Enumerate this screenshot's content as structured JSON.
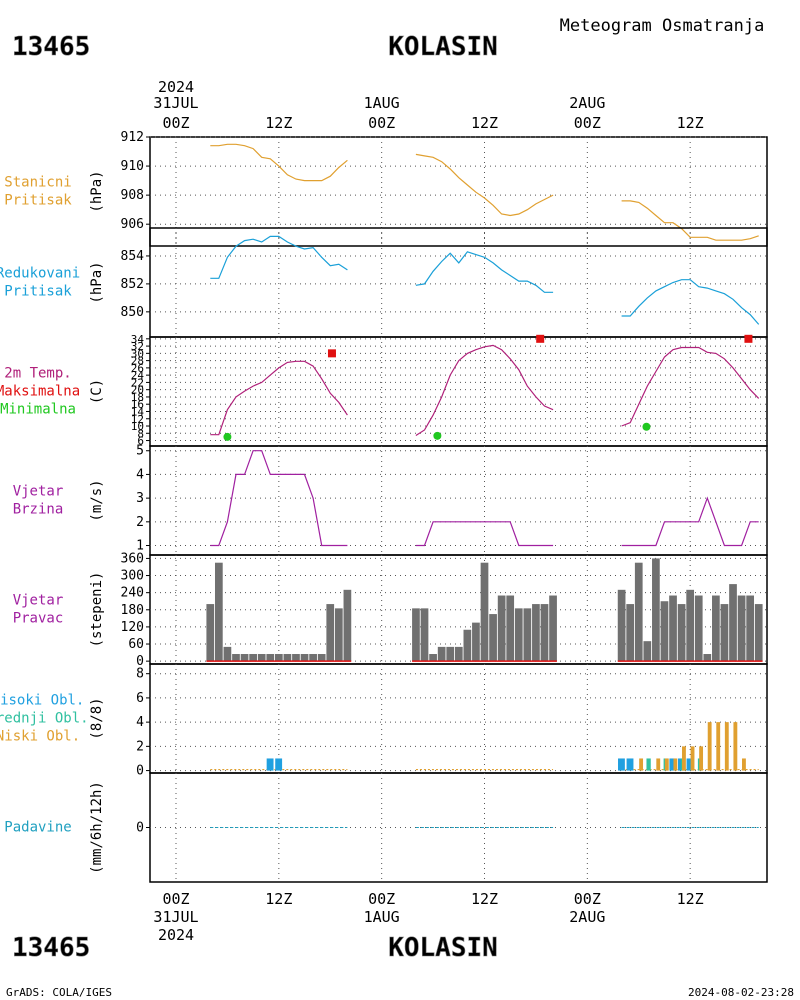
{
  "header": {
    "station_id": "13465",
    "station_name": "KOLASIN",
    "title": "Meteogram Osmatranja"
  },
  "footer": {
    "station_id": "13465",
    "station_name": "KOLASIN",
    "credit": "GrADS: COLA/IGES",
    "timestamp": "2024-08-02-23:28"
  },
  "time_axis": {
    "year": "2024",
    "top_labels": [
      {
        "h": 0,
        "time": "00Z",
        "date": "31JUL"
      },
      {
        "h": 12,
        "time": "12Z",
        "date": ""
      },
      {
        "h": 24,
        "time": "00Z",
        "date": "1AUG"
      },
      {
        "h": 36,
        "time": "12Z",
        "date": ""
      },
      {
        "h": 48,
        "time": "00Z",
        "date": "2AUG"
      },
      {
        "h": 60,
        "time": "12Z",
        "date": ""
      }
    ]
  },
  "colors": {
    "pressure_station": "#e0a030",
    "pressure_reduced": "#1aa0d8",
    "temp_line": "#b0207a",
    "temp_max": "#e01010",
    "temp_min": "#20c820",
    "wind": "#a020a0",
    "bars": "#707070",
    "cloud_high": "#20a0e0",
    "cloud_mid": "#30c0a0",
    "cloud_low": "#e0a030",
    "precip": "#20a0c0"
  },
  "chart_data": [
    {
      "type": "line",
      "panel": "station_pressure",
      "label_lines": [
        "Stanicni",
        "Pritisak"
      ],
      "unit": "(hPa)",
      "yticks": [
        906,
        908,
        910,
        912
      ],
      "ylim": [
        904.5,
        912
      ],
      "series": [
        {
          "x": [
            4,
            5,
            6,
            7,
            8,
            9,
            10,
            11,
            12,
            13,
            14,
            15,
            16,
            17,
            18,
            19,
            20
          ],
          "y": [
            911.4,
            911.4,
            911.5,
            911.5,
            911.4,
            911.2,
            910.6,
            910.5,
            910.0,
            909.4,
            909.1,
            909.0,
            909.0,
            909.0,
            909.3,
            909.9,
            910.4
          ]
        },
        {
          "x": [
            28,
            29,
            30,
            31,
            32,
            33,
            34,
            35,
            36,
            37,
            38,
            39,
            40,
            41,
            42,
            43,
            44
          ],
          "y": [
            910.8,
            910.7,
            910.6,
            910.3,
            909.8,
            909.2,
            908.7,
            908.2,
            907.8,
            907.3,
            906.7,
            906.6,
            906.7,
            907.0,
            907.4,
            907.7,
            908.0
          ]
        },
        {
          "x": [
            52,
            53,
            54,
            55,
            56,
            57,
            58,
            59,
            60,
            61,
            62,
            63,
            64,
            65,
            66,
            67,
            68
          ],
          "y": [
            907.6,
            907.6,
            907.5,
            907.1,
            906.6,
            906.1,
            906.1,
            905.7,
            905.1,
            905.1,
            905.1,
            904.9,
            904.9,
            904.9,
            904.9,
            905.0,
            905.2
          ]
        }
      ]
    },
    {
      "type": "line",
      "panel": "reduced_pressure",
      "label_lines": [
        "Redukovani",
        "Pritisak"
      ],
      "unit": "(hPa)",
      "yticks": [
        850,
        852,
        854
      ],
      "ylim": [
        848.2,
        856.0
      ],
      "series": [
        {
          "x": [
            4,
            5,
            6,
            7,
            8,
            9,
            10,
            11,
            12,
            13,
            14,
            15,
            16,
            17,
            18,
            19,
            20
          ],
          "y": [
            852.4,
            852.4,
            853.9,
            854.7,
            855.1,
            855.2,
            855.0,
            855.4,
            855.4,
            855.0,
            854.7,
            854.5,
            854.6,
            853.9,
            853.3,
            853.4,
            853.0
          ]
        },
        {
          "x": [
            28,
            29,
            30,
            31,
            32,
            33,
            34,
            35,
            36,
            37,
            38,
            39,
            40,
            41,
            42,
            43,
            44
          ],
          "y": [
            851.9,
            852.0,
            852.9,
            853.6,
            854.2,
            853.5,
            854.3,
            854.1,
            853.9,
            853.5,
            853.0,
            852.6,
            852.2,
            852.2,
            851.9,
            851.4,
            851.4
          ]
        },
        {
          "x": [
            52,
            53,
            54,
            55,
            56,
            57,
            58,
            59,
            60,
            61,
            62,
            63,
            64,
            65,
            66,
            67,
            68
          ],
          "y": [
            849.7,
            849.7,
            850.4,
            851.0,
            851.5,
            851.8,
            852.1,
            852.3,
            852.3,
            851.8,
            851.7,
            851.5,
            851.3,
            850.9,
            850.3,
            849.8,
            849.1
          ]
        }
      ]
    },
    {
      "type": "line",
      "panel": "temperature",
      "label_lines": [
        "2m Temp.",
        "Maksimalna",
        "Minimalna"
      ],
      "unit": "(C)",
      "yticks": [
        6,
        8,
        10,
        12,
        14,
        16,
        18,
        20,
        22,
        24,
        26,
        28,
        30,
        32,
        34
      ],
      "ylim": [
        4.5,
        34.5
      ],
      "series": [
        {
          "x": [
            4,
            5,
            6,
            7,
            8,
            9,
            10,
            11,
            12,
            13,
            14,
            15,
            16,
            17,
            18,
            19,
            20
          ],
          "y": [
            7.6,
            7.6,
            14.5,
            18.0,
            19.6,
            21.0,
            22.0,
            24.0,
            26.0,
            27.5,
            27.8,
            27.8,
            26.5,
            23.0,
            19.0,
            16.5,
            13.0
          ]
        },
        {
          "x": [
            28,
            29,
            30,
            31,
            32,
            33,
            34,
            35,
            36,
            37,
            38,
            39,
            40,
            41,
            42,
            43,
            44
          ],
          "y": [
            7.4,
            8.9,
            13.0,
            18.0,
            24.0,
            28.0,
            30.0,
            31.0,
            31.8,
            32.2,
            31.0,
            28.5,
            25.5,
            21.0,
            18.0,
            15.5,
            14.5
          ]
        },
        {
          "x": [
            52,
            53,
            54,
            55,
            56,
            57,
            58,
            59,
            60,
            61,
            62,
            63,
            64,
            65,
            66,
            67,
            68
          ],
          "y": [
            10.0,
            10.9,
            16.0,
            21.0,
            25.0,
            29.0,
            31.0,
            31.6,
            31.6,
            31.6,
            30.3,
            30.0,
            28.5,
            26.0,
            23.0,
            20.0,
            17.6
          ]
        }
      ],
      "max_markers": {
        "x": [
          18.2,
          42.5,
          66.8
        ],
        "y": [
          30.0,
          34.0,
          34.0
        ]
      },
      "min_markers": {
        "x": [
          6.0,
          30.5,
          54.9
        ],
        "y": [
          7.0,
          7.3,
          9.8
        ]
      }
    },
    {
      "type": "line",
      "panel": "wind_speed",
      "label_lines": [
        "Vjetar",
        "Brzina"
      ],
      "unit": "(m/s)",
      "yticks": [
        1,
        2,
        3,
        4,
        5
      ],
      "ylim": [
        0.6,
        5.2
      ],
      "series": [
        {
          "x": [
            4,
            5,
            6,
            7,
            8,
            9,
            10,
            11,
            12,
            13,
            14,
            15,
            16,
            17,
            18,
            19,
            20
          ],
          "y": [
            1,
            1,
            2,
            4,
            4,
            5,
            5,
            4,
            4,
            4,
            4,
            4,
            3,
            1,
            1,
            1,
            1
          ]
        },
        {
          "x": [
            28,
            29,
            30,
            31,
            32,
            33,
            34,
            35,
            36,
            37,
            38,
            39,
            40,
            41,
            42,
            43,
            44
          ],
          "y": [
            1,
            1,
            2,
            2,
            2,
            2,
            2,
            2,
            2,
            2,
            2,
            2,
            1,
            1,
            1,
            1,
            1
          ]
        },
        {
          "x": [
            52,
            53,
            54,
            55,
            56,
            57,
            58,
            59,
            60,
            61,
            62,
            63,
            64,
            65,
            66,
            67,
            68
          ],
          "y": [
            1,
            1,
            1,
            1,
            1,
            2,
            2,
            2,
            2,
            2,
            3,
            2,
            1,
            1,
            1,
            2,
            2
          ]
        }
      ]
    },
    {
      "type": "bar",
      "panel": "wind_direction",
      "label_lines": [
        "Vjetar",
        "Pravac"
      ],
      "unit": "(stepeni)",
      "yticks": [
        0,
        60,
        120,
        180,
        240,
        300,
        360
      ],
      "ylim": [
        -10,
        372
      ],
      "series": [
        {
          "x": [
            4,
            5,
            6,
            7,
            8,
            9,
            10,
            11,
            12,
            13,
            14,
            15,
            16,
            17,
            18,
            19,
            20
          ],
          "y": [
            200,
            345,
            50,
            25,
            25,
            25,
            25,
            25,
            25,
            25,
            25,
            25,
            25,
            25,
            200,
            185,
            250
          ]
        },
        {
          "x": [
            28,
            29,
            30,
            31,
            32,
            33,
            34,
            35,
            36,
            37,
            38,
            39,
            40,
            41,
            42,
            43,
            44
          ],
          "y": [
            185,
            185,
            25,
            50,
            50,
            50,
            110,
            135,
            345,
            165,
            230,
            230,
            185,
            185,
            200,
            200,
            230
          ]
        },
        {
          "x": [
            52,
            53,
            54,
            55,
            56,
            57,
            58,
            59,
            60,
            61,
            62,
            63,
            64,
            65,
            66,
            67,
            68
          ],
          "y": [
            250,
            200,
            345,
            70,
            360,
            210,
            230,
            200,
            250,
            230,
            25,
            230,
            200,
            270,
            230,
            230,
            200
          ]
        }
      ]
    },
    {
      "type": "bar",
      "panel": "clouds",
      "label_lines": [
        "Visoki Obl.",
        "Srednji Obl.",
        "Niski Obl."
      ],
      "unit": "(8/8)",
      "yticks": [
        0,
        2,
        4,
        6,
        8
      ],
      "ylim": [
        -0.2,
        8.8
      ],
      "series": [
        {
          "name": "Visoki Obl.",
          "x": [
            11,
            12,
            52,
            53,
            58,
            59,
            60
          ],
          "y": [
            1,
            1,
            1,
            1,
            1,
            1,
            1
          ]
        },
        {
          "name": "Srednji Obl.",
          "x": [
            55,
            57,
            59,
            61
          ],
          "y": [
            1,
            1,
            1,
            1
          ]
        },
        {
          "name": "Niski Obl.",
          "x": [
            54,
            56,
            57,
            58,
            59,
            60,
            61,
            62,
            63,
            64,
            65,
            66
          ],
          "y": [
            1,
            1,
            1,
            1,
            2,
            2,
            2,
            4,
            4,
            4,
            4,
            1
          ]
        }
      ]
    },
    {
      "type": "line",
      "panel": "precipitation",
      "label_lines": [
        "Padavine"
      ],
      "unit": "(mm/6h/12h)",
      "yticks": [
        0
      ],
      "ylim": [
        -4,
        4
      ],
      "series": [
        {
          "x": [
            4,
            20
          ],
          "y": [
            0,
            0
          ]
        },
        {
          "x": [
            28,
            44
          ],
          "y": [
            0,
            0
          ]
        },
        {
          "x": [
            52,
            68
          ],
          "y": [
            0,
            0
          ]
        }
      ]
    }
  ]
}
